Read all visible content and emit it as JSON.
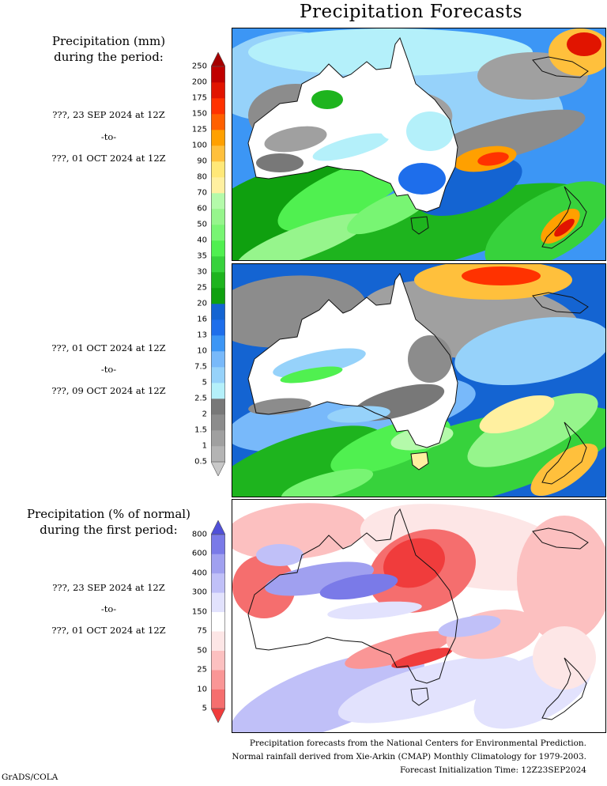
{
  "title": "Precipitation Forecasts",
  "precip_header": [
    "Precipitation (mm)",
    "during the period:"
  ],
  "pct_header": [
    "Precipitation (% of normal)",
    "during the first period:"
  ],
  "periods": [
    {
      "start": "???, 23 SEP 2024 at 12Z",
      "sep": "-to-",
      "end": "???, 01 OCT 2024 at 12Z"
    },
    {
      "start": "???, 01 OCT 2024 at 12Z",
      "sep": "-to-",
      "end": "???, 09 OCT 2024 at 12Z"
    },
    {
      "start": "???, 23 SEP 2024 at 12Z",
      "sep": "-to-",
      "end": "???, 01 OCT 2024 at 12Z"
    }
  ],
  "precip_scale": {
    "levels": [
      "0.5",
      "1",
      "1.5",
      "2",
      "2.5",
      "5",
      "7.5",
      "10",
      "13",
      "16",
      "20",
      "25",
      "30",
      "35",
      "40",
      "50",
      "60",
      "70",
      "80",
      "90",
      "100",
      "125",
      "150",
      "175",
      "200",
      "250"
    ],
    "colors": [
      "#c8c8c8",
      "#b4b4b4",
      "#a0a0a0",
      "#8c8c8c",
      "#787878",
      "#b4f0fa",
      "#96d2fa",
      "#78b9fa",
      "#3c96f5",
      "#1e6eeb",
      "#1464d2",
      "#0fa00f",
      "#1eb41e",
      "#37d23c",
      "#50f050",
      "#78f573",
      "#96f58c",
      "#b4faaa",
      "#fff0a0",
      "#ffe878",
      "#ffc03c",
      "#ffa000",
      "#ff6000",
      "#ff3200",
      "#e11400",
      "#c00000",
      "#a50000"
    ]
  },
  "pct_scale": {
    "levels": [
      "5",
      "10",
      "25",
      "50",
      "75",
      "150",
      "300",
      "400",
      "600",
      "800"
    ],
    "colors": [
      "#f03c3c",
      "#f56e6e",
      "#fa9696",
      "#fcc0c0",
      "#fde6e6",
      "#ffffff",
      "#e2e2fd",
      "#c0c0f8",
      "#a0a0f0",
      "#7a7ae8",
      "#5050d8"
    ]
  },
  "footer": [
    "Precipitation forecasts from the National Centers for Environmental Prediction.",
    "Normal rainfall derived from Xie-Arkin (CMAP) Monthly Climatology for 1979-2003.",
    "Forecast Initialization Time: 12Z23SEP2024"
  ],
  "credit": "GrADS/COLA"
}
